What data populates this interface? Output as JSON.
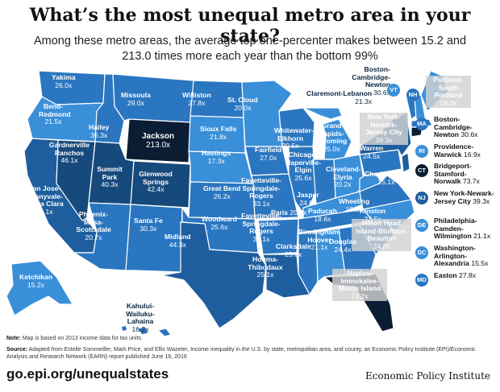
{
  "header": {
    "title": "What’s the most unequal metro area in your state?",
    "subtitle": "Among these metro areas, the average top one-percenter makes between 15.2 and 213.0 times more each year than the bottom 99%"
  },
  "colors": {
    "lightest": "#3a8fd9",
    "light": "#2b76c0",
    "mid": "#1f5e9e",
    "dark": "#174a7c",
    "darkest": "#0b1d33",
    "border": "#ffffff"
  },
  "metros": [
    {
      "name": "Yakima",
      "value": "26.0x"
    },
    {
      "name": "Missoula",
      "value": "29.0x"
    },
    {
      "name": "Williston",
      "value": "27.8x"
    },
    {
      "name": "St. Cloud",
      "value": "20.0x"
    },
    {
      "name": "Bend-Redmond",
      "value": "21.5x"
    },
    {
      "name": "Hailey",
      "value": "36.3x"
    },
    {
      "name": "Jackson",
      "value": "213.0x"
    },
    {
      "name": "Sioux Falls",
      "value": "21.8x"
    },
    {
      "name": "Whitewater-Elkhorn",
      "value": "30.5x"
    },
    {
      "name": "Grand Rapids-Wyoming",
      "value": "25.0x"
    },
    {
      "name": "Gardnerville Ranchos",
      "value": "46.1x"
    },
    {
      "name": "Summit Park",
      "value": "40.3x"
    },
    {
      "name": "Glenwood Springs",
      "value": "42.4x"
    },
    {
      "name": "Hastings",
      "value": "17.3x"
    },
    {
      "name": "Fairfield",
      "value": "27.0x"
    },
    {
      "name": "Chicago-Naperville-Elgin",
      "value": "25.6x"
    },
    {
      "name": "Cleveland-Elyria",
      "value": "20.2x"
    },
    {
      "name": "Warren",
      "value": "24.5x"
    },
    {
      "name": "San Jose-Sunnyvale-Santa Clara",
      "value": "32.1x"
    },
    {
      "name": "Great Bend",
      "value": "26.2x"
    },
    {
      "name": "Jasper",
      "value": "24.0x"
    },
    {
      "name": "Wheeling",
      "value": "19.5x"
    },
    {
      "name": "Charlottesville",
      "value": "25.1x"
    },
    {
      "name": "Phoenix-Mesa-Scottsdale",
      "value": "20.7x"
    },
    {
      "name": "Santa Fe",
      "value": "30.3x"
    },
    {
      "name": "Woodward",
      "value": "25.6x"
    },
    {
      "name": "Fayetteville-Springdale-Rogers",
      "value": "33.1x"
    },
    {
      "name": "Fayetteville-Springdale-Rogers",
      "value": "33.1x"
    },
    {
      "name": "Paducah",
      "value": "18.6x"
    },
    {
      "name": "Paris",
      "value": "20.8x"
    },
    {
      "name": "Kinston",
      "value": "23.5x"
    },
    {
      "name": "Hilton Head Island-Bluffton-Beaufort",
      "value": "24.2x"
    },
    {
      "name": "Midland",
      "value": "44.3x"
    },
    {
      "name": "Clarksdale",
      "value": "25.6x"
    },
    {
      "name": "Birmingham-Hoover",
      "value": "21.1x"
    },
    {
      "name": "Houma-Thibodaux",
      "value": "25.1x"
    },
    {
      "name": "Douglas",
      "value": "24.4x"
    },
    {
      "name": "Naples-Immokalee-Marco Island",
      "value": "73.2x"
    },
    {
      "name": "Ketchikan",
      "value": "15.2x"
    },
    {
      "name": "Kahului-Wailuku-Lahaina",
      "value": "16.2x"
    },
    {
      "name": "Boston-Cambridge-Newton",
      "value": "30.6x"
    },
    {
      "name": "Claremont-Lebanon",
      "value": "21.3x"
    },
    {
      "name": "Portland-South Portland",
      "value": "16.0x"
    },
    {
      "name": "New York-Newark-Jersey City",
      "value": "39.3x"
    }
  ],
  "state_badges": [
    "VT",
    "NH"
  ],
  "legend": [
    {
      "abbr": "MA",
      "name": "Boston-Cambridge-Newton",
      "value": "30.6x"
    },
    {
      "abbr": "RI",
      "name": "Providence-Warwick",
      "value": "16.9x"
    },
    {
      "abbr": "CT",
      "name": "Bridgeport-Stamford-Norwalk",
      "value": "73.7x"
    },
    {
      "abbr": "NJ",
      "name": "New York-Newark-Jersey City",
      "value": "39.3x"
    },
    {
      "abbr": "DE",
      "name": "Philadelphia-Camden-Wilmington",
      "value": "21.1x"
    },
    {
      "abbr": "DC",
      "name": "Washington-Arlington-Alexandria",
      "value": "15.5x"
    },
    {
      "abbr": "MD",
      "name": "Easton",
      "value": "27.8x"
    }
  ],
  "footer": {
    "note_label": "Note:",
    "note": "Map is based on 2013 income data for tax units.",
    "source_label": "Source:",
    "source": "Adapted from Estelle Sommeiller, Mark Price, and Ellis Wazeter, Income inequality in the U.S. by state, metropolitan area, and county, an Economic Policy Institute (EPI)/Economic Analysis and Research Network (EARN) report published June 16, 2016",
    "url": "go.epi.org/unequalstates",
    "organization": "Economic Policy Institute"
  }
}
